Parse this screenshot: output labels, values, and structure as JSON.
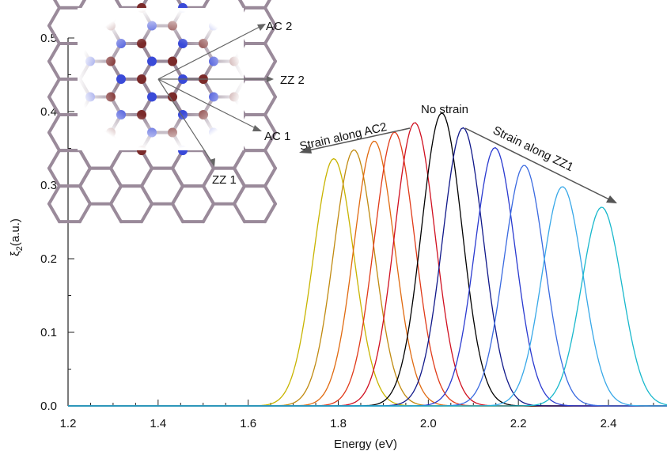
{
  "chart_data": {
    "type": "line",
    "title": "",
    "xlabel": "Energy (eV)",
    "ylabel_main": "ξ",
    "ylabel_sub": "2",
    "ylabel_unit": "(a.u.)",
    "xlim": [
      1.2,
      2.53
    ],
    "ylim": [
      0.0,
      0.5
    ],
    "xticks": [
      "1.2",
      "1.4",
      "1.6",
      "1.8",
      "2.0",
      "2.2",
      "2.4"
    ],
    "yticks": [
      "0.0",
      "0.1",
      "0.2",
      "0.3",
      "0.4",
      "0.5"
    ],
    "grid": false,
    "series": [
      {
        "color": "#c8b400",
        "center": 1.79,
        "peak": 0.336
      },
      {
        "color": "#c08a10",
        "center": 1.835,
        "peak": 0.348
      },
      {
        "color": "#e06a10",
        "center": 1.88,
        "peak": 0.36
      },
      {
        "color": "#e03a18",
        "center": 1.925,
        "peak": 0.372
      },
      {
        "color": "#d01020",
        "center": 1.97,
        "peak": 0.385
      },
      {
        "color": "#000000",
        "center": 2.03,
        "peak": 0.398
      },
      {
        "color": "#10188a",
        "center": 2.077,
        "peak": 0.378
      },
      {
        "color": "#2a3ad0",
        "center": 2.148,
        "peak": 0.351
      },
      {
        "color": "#3a6ae0",
        "center": 2.213,
        "peak": 0.327
      },
      {
        "color": "#38a8e8",
        "center": 2.298,
        "peak": 0.298
      },
      {
        "color": "#18b8cc",
        "center": 2.385,
        "peak": 0.27
      }
    ],
    "annotations": {
      "no_strain": "No strain",
      "strain_ac2": "Strain along AC2",
      "strain_zz1": "Strain along ZZ1"
    }
  },
  "inset": {
    "labels": {
      "ac2": "AC 2",
      "zz2": "ZZ 2",
      "ac1": "AC 1",
      "zz1": "ZZ 1"
    },
    "colors": {
      "nitrogen": "#3a4ad8",
      "boron": "#7a2a2a"
    }
  }
}
